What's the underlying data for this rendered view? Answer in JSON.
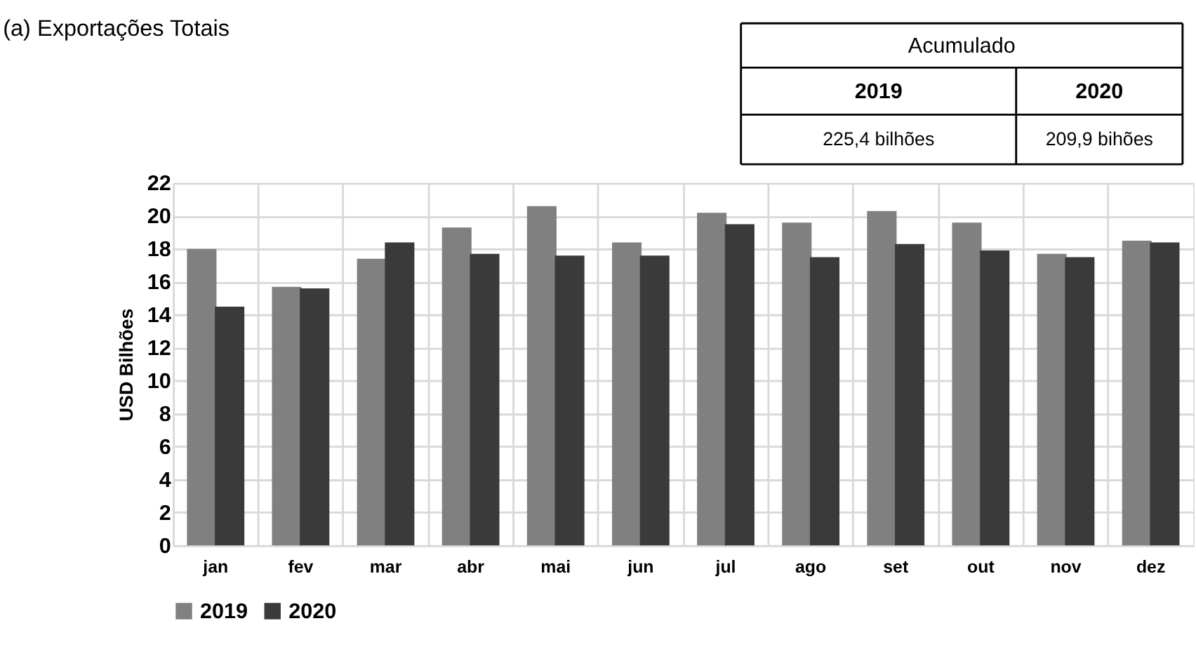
{
  "chart_data": {
    "type": "bar",
    "title": "(a) Exportações Totais",
    "ylabel": "USD Bilhões",
    "categories": [
      "jan",
      "fev",
      "mar",
      "abr",
      "mai",
      "jun",
      "jul",
      "ago",
      "set",
      "out",
      "nov",
      "dez"
    ],
    "series": [
      {
        "name": "2019",
        "color": "#808080",
        "values": [
          18.0,
          15.7,
          17.4,
          19.3,
          20.6,
          18.4,
          20.2,
          19.6,
          20.3,
          19.6,
          17.7,
          18.5
        ]
      },
      {
        "name": "2020",
        "color": "#3a3a3a",
        "values": [
          14.5,
          15.6,
          18.4,
          17.7,
          17.6,
          17.6,
          19.5,
          17.5,
          18.3,
          17.9,
          17.5,
          18.4
        ]
      }
    ],
    "ylim": [
      0,
      22
    ],
    "yticks": [
      0,
      2,
      4,
      6,
      8,
      10,
      12,
      14,
      16,
      18,
      20,
      22
    ],
    "grid": true,
    "legend": "bottom",
    "annotations": [
      "Acumulado",
      "2019",
      "2020",
      "225,4 bilhões",
      "209,9 bihões"
    ]
  }
}
